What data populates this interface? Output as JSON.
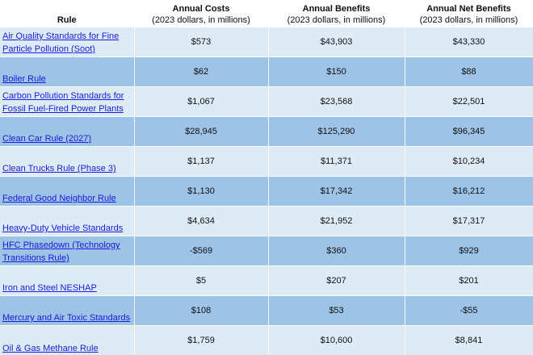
{
  "table": {
    "columns": [
      {
        "title": "Rule",
        "subtitle": ""
      },
      {
        "title": "Annual Costs",
        "subtitle": "(2023 dollars, in millions)"
      },
      {
        "title": "Annual Benefits",
        "subtitle": "(2023 dollars, in millions)"
      },
      {
        "title": "Annual Net Benefits",
        "subtitle": "(2023 dollars, in millions)"
      }
    ],
    "rows": [
      {
        "rule": "Air Quality Standards for Fine Particle Pollution (Soot)",
        "costs": "$573",
        "benefits": "$43,903",
        "net": "$43,330"
      },
      {
        "rule": "Boiler Rule",
        "costs": "$62",
        "benefits": "$150",
        "net": "$88"
      },
      {
        "rule": "Carbon Pollution Standards for Fossil Fuel-Fired Power Plants",
        "costs": "$1,067",
        "benefits": "$23,568",
        "net": "$22,501"
      },
      {
        "rule": "Clean Car Rule (2027)",
        "costs": "$28,945",
        "benefits": "$125,290",
        "net": "$96,345"
      },
      {
        "rule": "Clean Trucks Rule (Phase 3)",
        "costs": "$1,137",
        "benefits": "$11,371",
        "net": "$10,234"
      },
      {
        "rule": "Federal Good Neighbor Rule",
        "costs": "$1,130",
        "benefits": "$17,342",
        "net": "$16,212"
      },
      {
        "rule": "Heavy-Duty Vehicle Standards",
        "costs": "$4,634",
        "benefits": "$21,952",
        "net": "$17,317"
      },
      {
        "rule": "HFC Phasedown (Technology Transitions Rule)",
        "costs": "-$569",
        "benefits": "$360",
        "net": "$929"
      },
      {
        "rule": "Iron and Steel NESHAP",
        "costs": "$5",
        "benefits": "$207",
        "net": "$201"
      },
      {
        "rule": "Mercury and Air Toxic Standards",
        "costs": "$108",
        "benefits": "$53",
        "net": "-$55"
      },
      {
        "rule": "Oil & Gas Methane Rule",
        "costs": "$1,759",
        "benefits": "$10,600",
        "net": "$8,841"
      }
    ],
    "colors": {
      "header_bg": "#ffffff",
      "row_light": "#ddebf7",
      "row_dark": "#9dc3e6",
      "link": "#1a1adb"
    }
  }
}
